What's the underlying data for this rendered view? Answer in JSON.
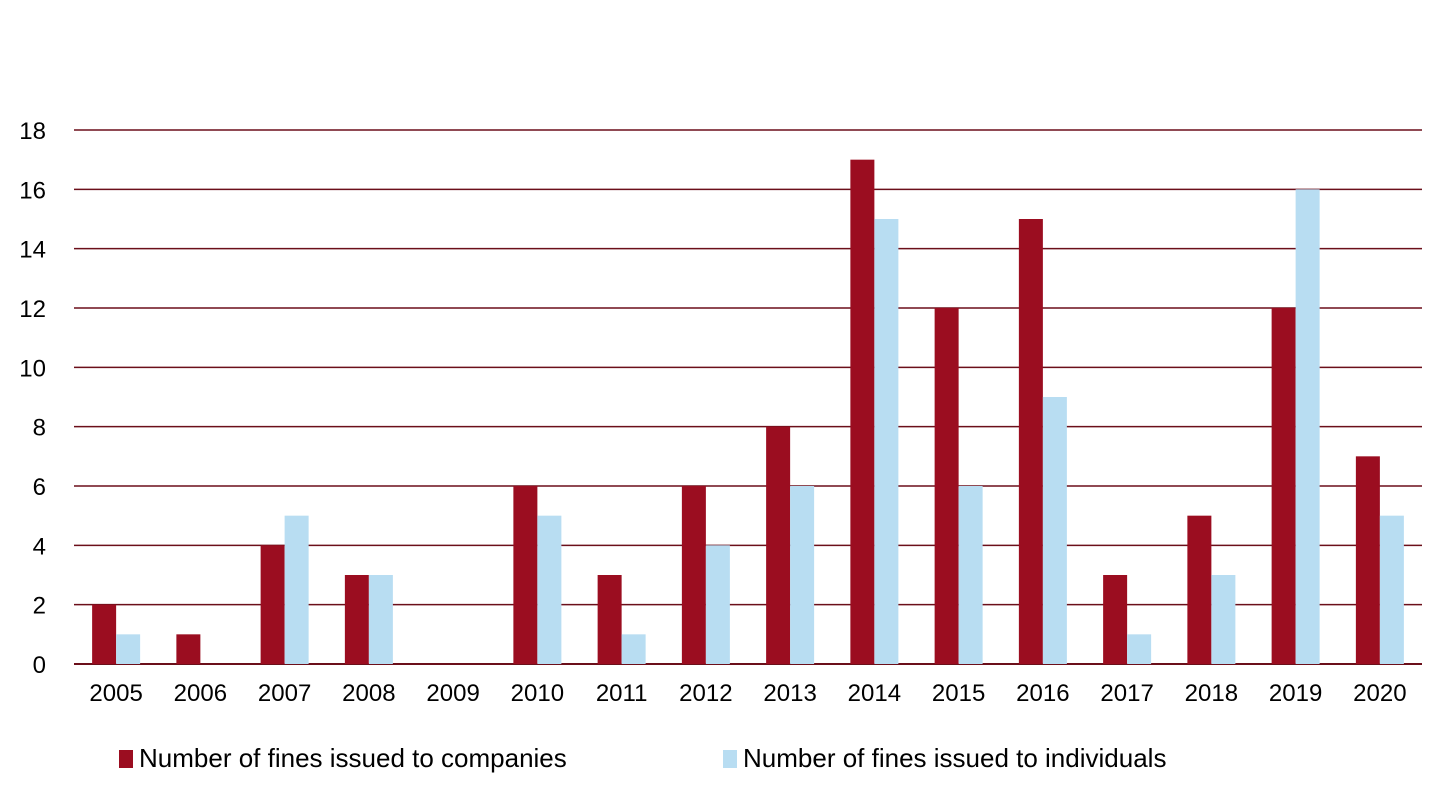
{
  "chart_data": {
    "type": "bar",
    "categories": [
      "2005",
      "2006",
      "2007",
      "2008",
      "2009",
      "2010",
      "2011",
      "2012",
      "2013",
      "2014",
      "2015",
      "2016",
      "2017",
      "2018",
      "2019",
      "2020"
    ],
    "series": [
      {
        "name": "Number of fines issued to companies",
        "color": "#9B0D20",
        "values": [
          2,
          1,
          4,
          3,
          0,
          6,
          3,
          6,
          8,
          17,
          12,
          15,
          3,
          5,
          12,
          7
        ]
      },
      {
        "name": "Number of fines issued to individuals",
        "color": "#B8DDF2",
        "values": [
          1,
          0,
          5,
          3,
          0,
          5,
          1,
          4,
          6,
          15,
          6,
          9,
          1,
          3,
          16,
          5
        ]
      }
    ],
    "yticks": [
      "0",
      "2",
      "4",
      "6",
      "8",
      "10",
      "12",
      "14",
      "16",
      "18"
    ],
    "ylim": [
      0,
      18
    ],
    "grid": true,
    "gridline_color": "#6B0F1A",
    "legend_position": "bottom"
  }
}
